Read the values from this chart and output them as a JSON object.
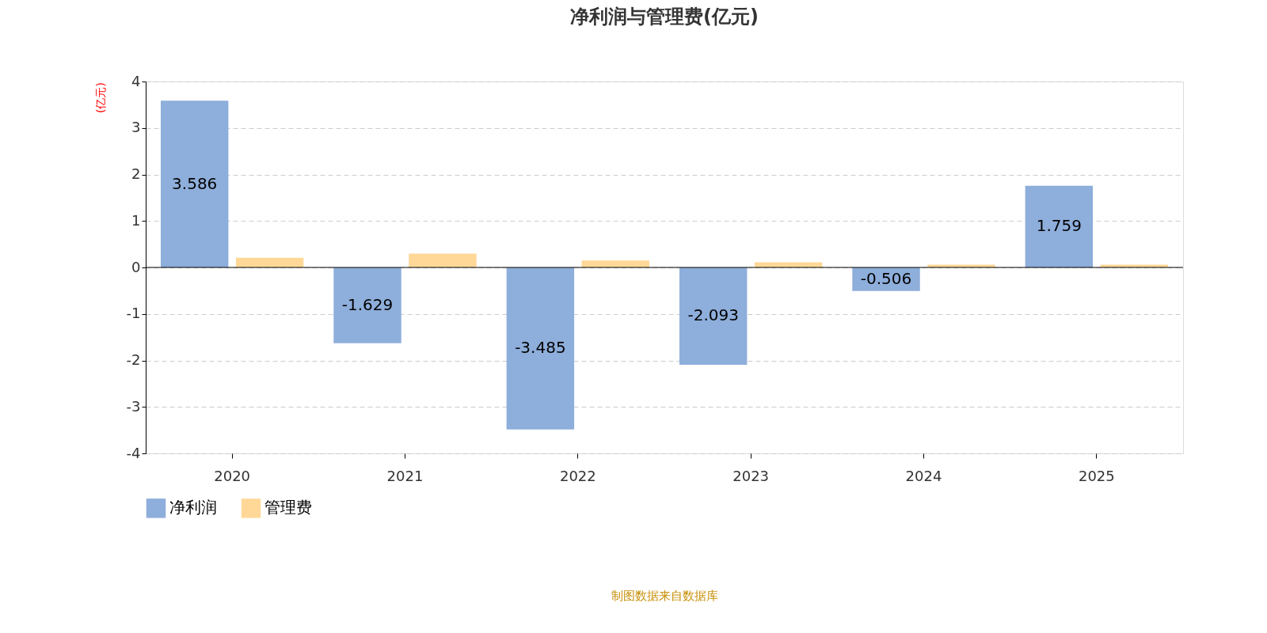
{
  "chart_data": {
    "type": "bar",
    "title": "净利润与管理费(亿元)",
    "ylabel": "(亿元)",
    "categories": [
      "2020",
      "2021",
      "2022",
      "2023",
      "2024",
      "2025"
    ],
    "series": [
      {
        "name": "净利润",
        "color": "#8eaedb",
        "values": [
          3.586,
          -1.629,
          -3.485,
          -2.093,
          -0.506,
          1.759
        ],
        "value_labels": [
          "3.586",
          "-1.629",
          "-3.485",
          "-2.093",
          "-0.506",
          "1.759"
        ]
      },
      {
        "name": "管理费",
        "color": "#ffd898",
        "values": [
          0.21,
          0.3,
          0.15,
          0.11,
          0.06,
          0.06
        ]
      }
    ],
    "ylim": [
      -4,
      4
    ],
    "yticks": [
      -4,
      -3,
      -2,
      -1,
      0,
      1,
      2,
      3,
      4
    ],
    "grid": "y",
    "legend": "bottom",
    "annotations": [
      "制图数据来自数据库"
    ]
  }
}
